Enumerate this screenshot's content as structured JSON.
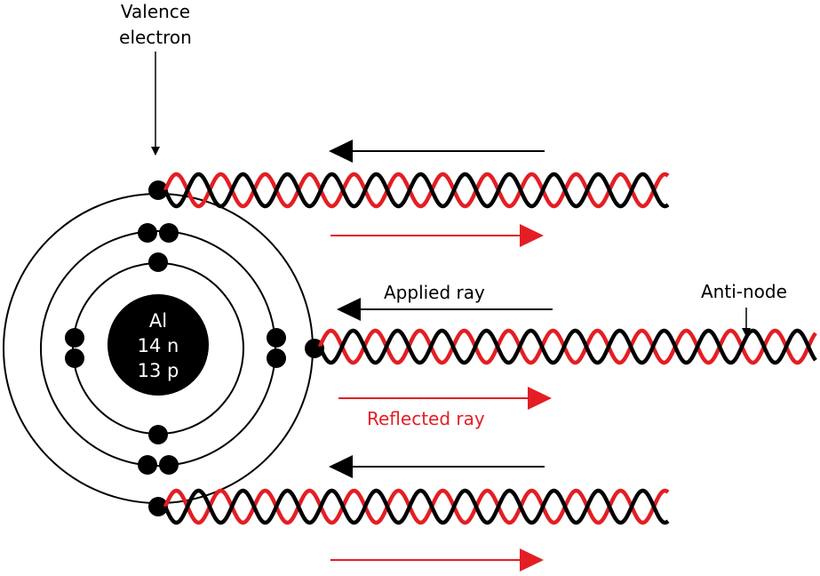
{
  "labels": {
    "valence_line1": "Valence",
    "valence_line2": "electron",
    "applied_ray": "Applied ray",
    "reflected_ray": "Reflected ray",
    "anti_node": "Anti-node"
  },
  "nucleus": {
    "element": "Al",
    "neutrons": "14 n",
    "protons": "13 p"
  },
  "colors": {
    "applied": "#000000",
    "reflected": "#e31e24",
    "background": "#ffffff"
  },
  "shells": [
    {
      "electrons": 2
    },
    {
      "electrons": 8
    },
    {
      "electrons": 3
    }
  ]
}
